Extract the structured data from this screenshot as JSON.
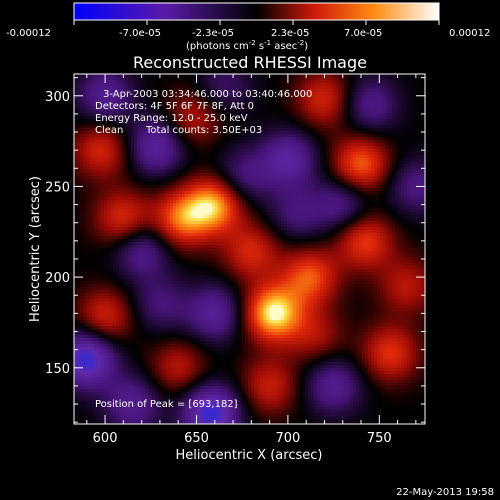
{
  "colorbar": {
    "labels": [
      "-0.00012",
      "-7.0e-05",
      "-2.3e-05",
      "2.3e-05",
      "7.0e-05",
      "0.00012"
    ],
    "units": "(photons cm",
    "units_exp1": "-2",
    "units_mid": " s",
    "units_exp2": "-1",
    "units_tail": " asec",
    "units_exp3": "-2",
    "units_close": ")",
    "range": [
      -0.00012,
      0.00012
    ],
    "colormap": "blue-purple-black-red-yellow-white"
  },
  "chart_data": {
    "type": "heatmap",
    "title": "Reconstructed RHESSI Image",
    "xlabel": "Heliocentric X (arcsec)",
    "ylabel": "Heliocentric Y (arcsec)",
    "xlim": [
      583,
      775
    ],
    "ylim": [
      119,
      312
    ],
    "xticks": [
      600,
      650,
      700,
      750
    ],
    "xtick_labels": [
      "600",
      "650",
      "700",
      "750"
    ],
    "yticks": [
      150,
      200,
      250,
      300
    ],
    "ytick_labels": [
      "150",
      "200",
      "250",
      "300"
    ],
    "blobs": [
      {
        "x": 692,
        "y": 180,
        "v": 1.0
      },
      {
        "x": 660,
        "y": 240,
        "v": 0.85
      },
      {
        "x": 642,
        "y": 232,
        "v": 0.7
      },
      {
        "x": 740,
        "y": 262,
        "v": 0.7
      },
      {
        "x": 742,
        "y": 220,
        "v": 0.6
      },
      {
        "x": 712,
        "y": 200,
        "v": 0.65
      },
      {
        "x": 680,
        "y": 214,
        "v": 0.5
      },
      {
        "x": 610,
        "y": 232,
        "v": 0.55
      },
      {
        "x": 598,
        "y": 270,
        "v": 0.5
      },
      {
        "x": 600,
        "y": 178,
        "v": 0.5
      },
      {
        "x": 720,
        "y": 298,
        "v": 0.5
      },
      {
        "x": 648,
        "y": 288,
        "v": 0.4
      },
      {
        "x": 756,
        "y": 158,
        "v": 0.55
      },
      {
        "x": 640,
        "y": 150,
        "v": 0.4
      },
      {
        "x": 690,
        "y": 140,
        "v": 0.45
      },
      {
        "x": 765,
        "y": 195,
        "v": 0.4
      },
      {
        "x": 715,
        "y": 168,
        "v": 0.35
      },
      {
        "x": 628,
        "y": 272,
        "v": -0.6
      },
      {
        "x": 590,
        "y": 155,
        "v": -0.9
      },
      {
        "x": 658,
        "y": 125,
        "v": -0.9
      },
      {
        "x": 620,
        "y": 215,
        "v": -0.5
      },
      {
        "x": 700,
        "y": 265,
        "v": -0.6
      },
      {
        "x": 675,
        "y": 255,
        "v": -0.4
      },
      {
        "x": 745,
        "y": 295,
        "v": -0.45
      },
      {
        "x": 730,
        "y": 240,
        "v": -0.45
      },
      {
        "x": 660,
        "y": 180,
        "v": -0.55
      },
      {
        "x": 630,
        "y": 185,
        "v": -0.35
      },
      {
        "x": 770,
        "y": 250,
        "v": -0.4
      },
      {
        "x": 725,
        "y": 140,
        "v": -0.5
      },
      {
        "x": 600,
        "y": 300,
        "v": -0.5
      },
      {
        "x": 665,
        "y": 305,
        "v": -0.3
      },
      {
        "x": 705,
        "y": 235,
        "v": -0.35
      },
      {
        "x": 615,
        "y": 130,
        "v": -0.5
      }
    ]
  },
  "annotations": {
    "time_range": "3-Apr-2003 03:34:46.000 to 03:40:46.000",
    "detectors": "Detectors: 4F 5F 6F 7F 8F, Att 0",
    "energy": "Energy Range: 12.0 - 25.0 keV",
    "clean_label": "Clean",
    "total_counts": "Total counts: 3.50E+03",
    "peak": "Position of Peak = [693,182]"
  },
  "footer": {
    "timestamp": "22-May-2013 19:58"
  }
}
